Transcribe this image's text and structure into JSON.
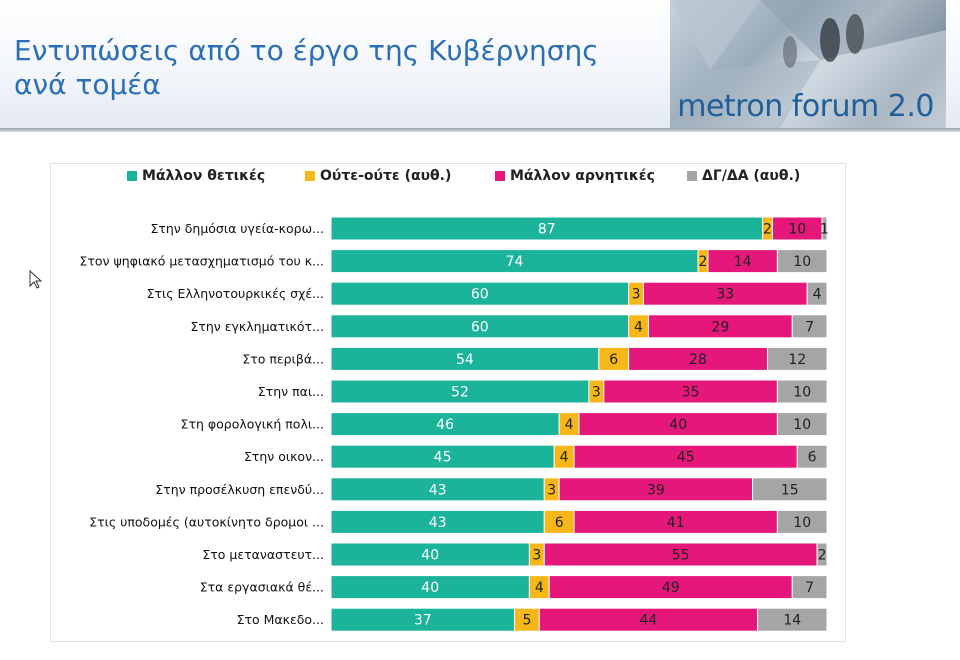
{
  "header": {
    "title_line1": "Εντυπώσεις από το έργο της Κυβέρνησης",
    "title_line2": "ανά τομέα",
    "logo_text": "metron forum 2.0"
  },
  "chart_data": {
    "type": "bar",
    "orientation": "horizontal",
    "stacked": true,
    "categories": [
      "Στην δημόσια υγεία-κορω...",
      "Στον ψηφιακό μετασχηματισμό του κ...",
      "Στις Ελληνοτουρκικές σχέ...",
      "Στην εγκληματικότ...",
      "Στο περιβά...",
      "Στην παι...",
      "Στη φορολογική πολι...",
      "Στην οικον...",
      "Στην προσέλκυση επενδύ...",
      "Στις υποδομές (αυτοκίνητο δρομοι ...",
      "Στο μεταναστευτ...",
      "Στα εργασιακά θέ...",
      "Στο Μακεδο..."
    ],
    "series": [
      {
        "name": "Μάλλον θετικές",
        "color": "#1cb39b",
        "label_color": "#ffffff",
        "values": [
          87,
          74,
          60,
          60,
          54,
          52,
          46,
          45,
          43,
          43,
          40,
          40,
          37
        ]
      },
      {
        "name": "Ούτε-ούτε  (αυθ.)",
        "color": "#f8b718",
        "label_color": "#222222",
        "values": [
          2,
          2,
          3,
          4,
          6,
          3,
          4,
          4,
          3,
          6,
          3,
          4,
          5
        ]
      },
      {
        "name": "Μάλλον αρνητικές",
        "color": "#e6177a",
        "label_color": "#222222",
        "values": [
          10,
          14,
          33,
          29,
          28,
          35,
          40,
          45,
          39,
          41,
          55,
          49,
          44
        ]
      },
      {
        "name": "ΔΓ/ΔΑ (αυθ.)",
        "color": "#a5a5a5",
        "label_color": "#222222",
        "values": [
          1,
          10,
          4,
          7,
          12,
          10,
          10,
          6,
          15,
          10,
          2,
          7,
          14
        ]
      }
    ],
    "xlim": [
      0,
      100
    ],
    "legend_position": "top",
    "grid": false
  }
}
